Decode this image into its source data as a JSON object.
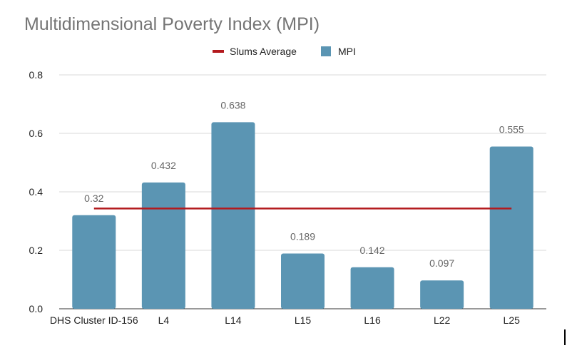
{
  "chart_data": {
    "type": "bar",
    "title": "Multidimensional Poverty Index (MPI)",
    "xlabel": "",
    "ylabel": "",
    "categories": [
      "DHS Cluster ID-156",
      "L4",
      "L14",
      "L15",
      "L16",
      "L22",
      "L25"
    ],
    "series": [
      {
        "name": "MPI",
        "type": "bar",
        "color": "#5b95b3",
        "values": [
          0.32,
          0.432,
          0.638,
          0.189,
          0.142,
          0.097,
          0.555
        ],
        "labels": [
          "0.32",
          "0.432",
          "0.638",
          "0.189",
          "0.142",
          "0.097",
          "0.555"
        ]
      },
      {
        "name": "Slums Average",
        "type": "line",
        "color": "#b3191d",
        "value": 0.343
      }
    ],
    "ylim": [
      0,
      0.8
    ],
    "yticks": [
      0,
      0.2,
      0.4,
      0.6,
      0.8
    ],
    "ytick_labels": [
      "0.0",
      "0.2",
      "0.4",
      "0.6",
      "0.8"
    ],
    "legend": [
      "Slums Average",
      "MPI"
    ],
    "legend_position": "top",
    "grid": true
  }
}
